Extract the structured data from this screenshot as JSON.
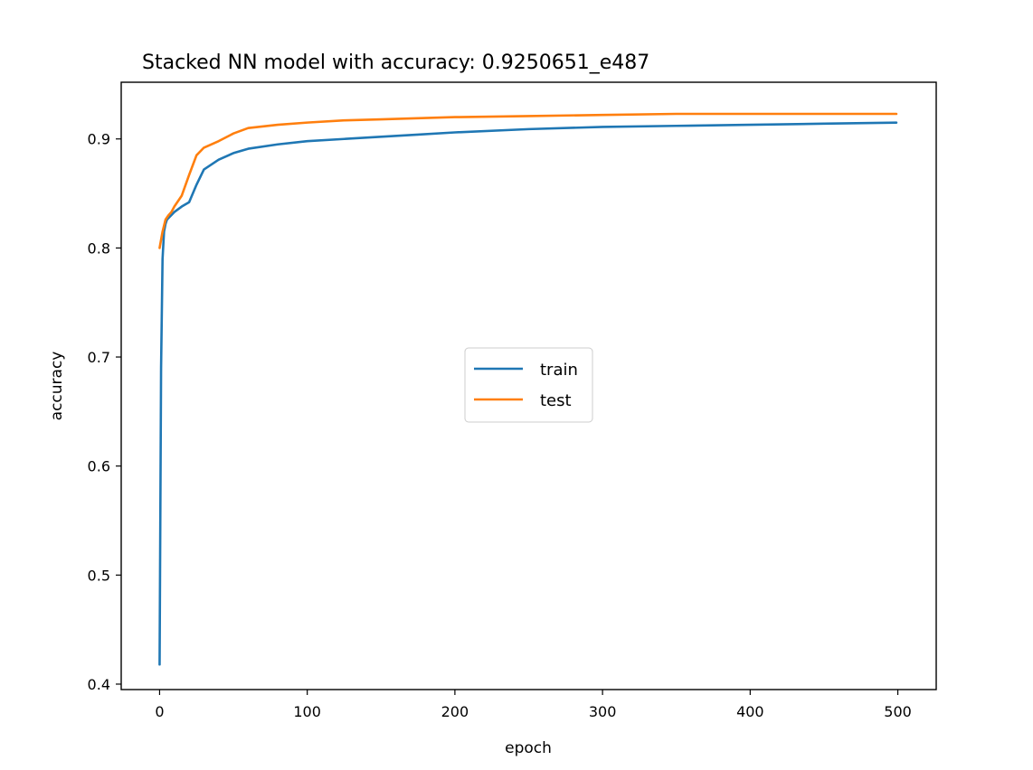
{
  "chart_data": {
    "type": "line",
    "title": "Stacked NN model with accuracy: 0.9250651_e487",
    "xlabel": "epoch",
    "ylabel": "accuracy",
    "xlim": [
      -26,
      526
    ],
    "ylim": [
      0.395,
      0.952
    ],
    "xticks": [
      0,
      100,
      200,
      300,
      400,
      500
    ],
    "yticks": [
      0.4,
      0.5,
      0.6,
      0.7,
      0.8,
      0.9
    ],
    "ytick_labels": [
      "0.4",
      "0.5",
      "0.6",
      "0.7",
      "0.8",
      "0.9"
    ],
    "grid": false,
    "legend_position": "center",
    "series": [
      {
        "name": "train",
        "color": "#1f77b4",
        "x": [
          0,
          1,
          2,
          3,
          4,
          5,
          10,
          15,
          20,
          25,
          30,
          40,
          50,
          60,
          80,
          100,
          125,
          150,
          175,
          200,
          250,
          300,
          350,
          400,
          450,
          499
        ],
        "y": [
          0.418,
          0.69,
          0.79,
          0.815,
          0.822,
          0.826,
          0.833,
          0.838,
          0.842,
          0.858,
          0.872,
          0.881,
          0.887,
          0.891,
          0.895,
          0.898,
          0.9,
          0.902,
          0.904,
          0.906,
          0.909,
          0.911,
          0.912,
          0.913,
          0.914,
          0.915
        ]
      },
      {
        "name": "test",
        "color": "#ff7f0e",
        "x": [
          0,
          2,
          4,
          6,
          8,
          10,
          15,
          20,
          25,
          30,
          40,
          50,
          60,
          80,
          100,
          125,
          150,
          175,
          200,
          250,
          300,
          350,
          400,
          450,
          499
        ],
        "y": [
          0.8,
          0.815,
          0.826,
          0.83,
          0.833,
          0.838,
          0.848,
          0.867,
          0.885,
          0.892,
          0.898,
          0.905,
          0.91,
          0.913,
          0.915,
          0.917,
          0.918,
          0.919,
          0.92,
          0.921,
          0.922,
          0.923,
          0.923,
          0.923,
          0.923
        ]
      }
    ]
  }
}
